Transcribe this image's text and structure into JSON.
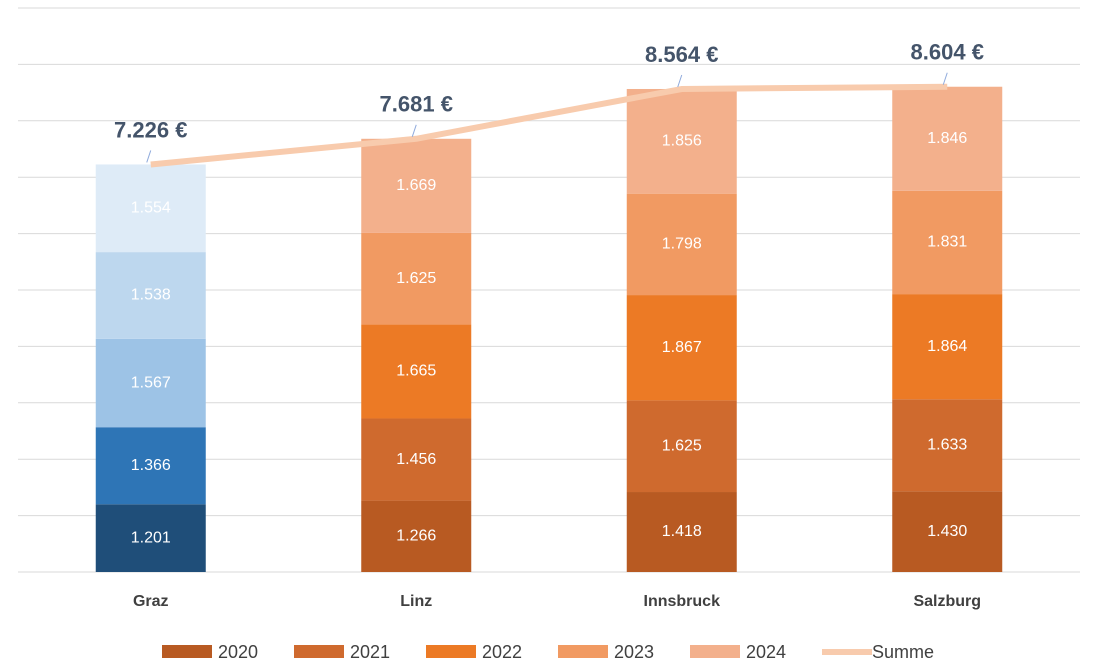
{
  "chart_data": {
    "type": "stacked-bar-line",
    "categories": [
      "Graz",
      "Linz",
      "Innsbruck",
      "Salzburg"
    ],
    "series": [
      {
        "name": "2020",
        "color": "#b85a22",
        "colors": [
          "#1f4e79",
          "#b85a22",
          "#b85a22",
          "#b85a22"
        ],
        "values": [
          1201,
          1266,
          1418,
          1430
        ],
        "value_labels": [
          "1.201",
          "1.266",
          "1.418",
          "1.430"
        ]
      },
      {
        "name": "2021",
        "color": "#cf6a2e",
        "colors": [
          "#2e75b6",
          "#cf6a2e",
          "#cf6a2e",
          "#cf6a2e"
        ],
        "values": [
          1366,
          1456,
          1625,
          1633
        ],
        "value_labels": [
          "1.366",
          "1.456",
          "1.625",
          "1.633"
        ]
      },
      {
        "name": "2022",
        "color": "#ec7a25",
        "colors": [
          "#9dc3e6",
          "#ec7a25",
          "#ec7a25",
          "#ec7a25"
        ],
        "values": [
          1567,
          1665,
          1867,
          1864
        ],
        "value_labels": [
          "1.567",
          "1.665",
          "1.867",
          "1.864"
        ]
      },
      {
        "name": "2023",
        "color": "#f19a62",
        "colors": [
          "#bdd7ee",
          "#f19a62",
          "#f19a62",
          "#f19a62"
        ],
        "values": [
          1538,
          1625,
          1798,
          1831
        ],
        "value_labels": [
          "1.538",
          "1.625",
          "1.798",
          "1.831"
        ]
      },
      {
        "name": "2024",
        "color": "#f3b08c",
        "colors": [
          "#deebf7",
          "#f3b08c",
          "#f3b08c",
          "#f3b08c"
        ],
        "values": [
          1554,
          1669,
          1856,
          1846
        ],
        "value_labels": [
          "1.554",
          "1.669",
          "1.856",
          "1.846"
        ]
      }
    ],
    "line": {
      "name": "Summe",
      "color": "#f8cbad",
      "values": [
        7226,
        7681,
        8564,
        8604
      ],
      "value_labels": [
        "7.226 €",
        "7.681 €",
        "8.564 €",
        "8.604 €"
      ]
    },
    "ylim": [
      0,
      10000
    ],
    "yticks": [
      0,
      1000,
      2000,
      3000,
      4000,
      5000,
      6000,
      7000,
      8000,
      9000,
      10000
    ],
    "grid": true
  }
}
